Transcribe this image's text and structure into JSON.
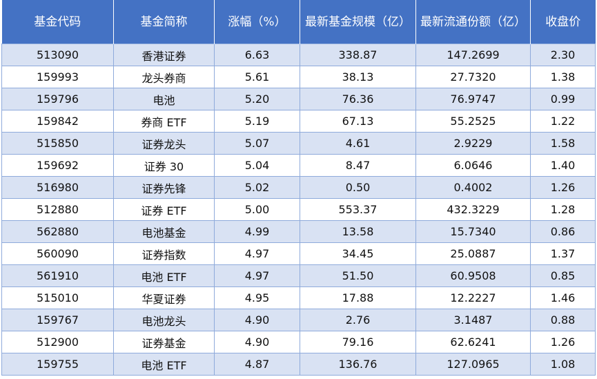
{
  "table": {
    "headers": [
      "基金代码",
      "基金简称",
      "涨幅（%）",
      "最新基金规模（亿）",
      "最新流通份额（亿）",
      "收盘价"
    ],
    "rows": [
      [
        "513090",
        "香港证券",
        "6.63",
        "338.87",
        "147.2699",
        "2.30"
      ],
      [
        "159993",
        "龙头券商",
        "5.61",
        "38.13",
        "27.7320",
        "1.38"
      ],
      [
        "159796",
        "电池",
        "5.20",
        "76.36",
        "76.9747",
        "0.99"
      ],
      [
        "159842",
        "券商 ETF",
        "5.19",
        "67.13",
        "55.2525",
        "1.22"
      ],
      [
        "515850",
        "证券龙头",
        "5.07",
        "4.61",
        "2.9229",
        "1.58"
      ],
      [
        "159692",
        "证券 30",
        "5.04",
        "8.47",
        "6.0646",
        "1.40"
      ],
      [
        "516980",
        "证券先锋",
        "5.02",
        "0.50",
        "0.4002",
        "1.26"
      ],
      [
        "512880",
        "证券 ETF",
        "5.00",
        "553.37",
        "432.3229",
        "1.28"
      ],
      [
        "562880",
        "电池基金",
        "4.99",
        "13.58",
        "15.7340",
        "0.86"
      ],
      [
        "560090",
        "证券指数",
        "4.97",
        "34.45",
        "25.0887",
        "1.37"
      ],
      [
        "561910",
        "电池 ETF",
        "4.97",
        "51.50",
        "60.9508",
        "0.85"
      ],
      [
        "515010",
        "华夏证券",
        "4.95",
        "17.88",
        "12.2227",
        "1.46"
      ],
      [
        "159767",
        "电池龙头",
        "4.90",
        "2.76",
        "3.1487",
        "0.88"
      ],
      [
        "512900",
        "证券基金",
        "4.90",
        "79.16",
        "62.6241",
        "1.26"
      ],
      [
        "159755",
        "电池 ETF",
        "4.87",
        "136.76",
        "127.0965",
        "1.08"
      ]
    ]
  },
  "colors": {
    "header_bg": "#4472c4",
    "row_stripe": "#d9e2f3",
    "border": "#8eaadb"
  }
}
